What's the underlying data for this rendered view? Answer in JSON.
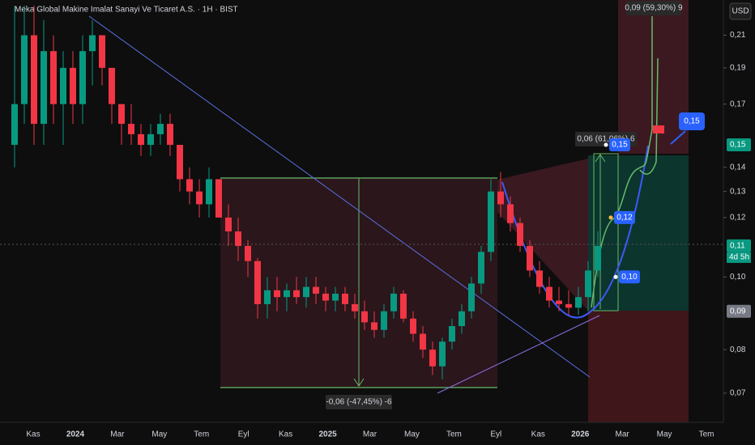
{
  "header": {
    "title": "Meka Global Makine Imalat Sanayi Ve Ticaret A.S. · 1H · BIST",
    "currency": "USD"
  },
  "chart_data": {
    "type": "candlestick",
    "categories": [
      "Kas",
      "2024",
      "Mar",
      "May",
      "Tem",
      "Eyl",
      "Kas",
      "2025",
      "Mar",
      "May",
      "Tem",
      "Eyl",
      "Kas",
      "2026",
      "Mar",
      "May",
      "Tem"
    ],
    "open": [
      0.15,
      0.17,
      0.21,
      0.16,
      0.2,
      0.17,
      0.19,
      0.17,
      0.2,
      0.21,
      0.19,
      0.17,
      0.16,
      0.155,
      0.15,
      0.155,
      0.16,
      0.15,
      0.135,
      0.13,
      0.125,
      0.135,
      0.12,
      0.115,
      0.11,
      0.105,
      0.092,
      0.096,
      0.094,
      0.096,
      0.094,
      0.097,
      0.095,
      0.093,
      0.095,
      0.092,
      0.09,
      0.087,
      0.085,
      0.09,
      0.095,
      0.088,
      0.084,
      0.08,
      0.076,
      0.082,
      0.086,
      0.09,
      0.098,
      0.108,
      0.13,
      0.125,
      0.118,
      0.11,
      0.102,
      0.097,
      0.093,
      0.092,
      0.091,
      0.094,
      0.102
    ],
    "high": [
      0.23,
      0.23,
      0.23,
      0.22,
      0.21,
      0.2,
      0.2,
      0.21,
      0.22,
      0.21,
      0.19,
      0.17,
      0.17,
      0.16,
      0.16,
      0.165,
      0.165,
      0.15,
      0.14,
      0.135,
      0.14,
      0.135,
      0.125,
      0.12,
      0.112,
      0.106,
      0.1,
      0.1,
      0.098,
      0.1,
      0.1,
      0.1,
      0.097,
      0.097,
      0.097,
      0.095,
      0.093,
      0.09,
      0.092,
      0.097,
      0.096,
      0.09,
      0.086,
      0.082,
      0.083,
      0.088,
      0.092,
      0.1,
      0.11,
      0.135,
      0.138,
      0.128,
      0.12,
      0.112,
      0.105,
      0.1,
      0.097,
      0.096,
      0.097,
      0.105,
      0.115
    ],
    "low": [
      0.14,
      0.16,
      0.15,
      0.15,
      0.16,
      0.15,
      0.16,
      0.16,
      0.18,
      0.18,
      0.16,
      0.15,
      0.15,
      0.145,
      0.145,
      0.15,
      0.145,
      0.13,
      0.125,
      0.12,
      0.12,
      0.12,
      0.11,
      0.105,
      0.1,
      0.088,
      0.088,
      0.09,
      0.09,
      0.092,
      0.091,
      0.092,
      0.09,
      0.09,
      0.09,
      0.088,
      0.085,
      0.083,
      0.083,
      0.088,
      0.087,
      0.082,
      0.078,
      0.074,
      0.073,
      0.08,
      0.084,
      0.088,
      0.095,
      0.105,
      0.12,
      0.115,
      0.108,
      0.1,
      0.095,
      0.091,
      0.09,
      0.089,
      0.089,
      0.09,
      0.1
    ],
    "close": [
      0.17,
      0.21,
      0.16,
      0.2,
      0.17,
      0.19,
      0.17,
      0.2,
      0.21,
      0.19,
      0.17,
      0.16,
      0.155,
      0.15,
      0.155,
      0.16,
      0.15,
      0.135,
      0.13,
      0.125,
      0.135,
      0.12,
      0.115,
      0.11,
      0.105,
      0.092,
      0.096,
      0.094,
      0.096,
      0.094,
      0.097,
      0.095,
      0.093,
      0.095,
      0.092,
      0.09,
      0.087,
      0.085,
      0.09,
      0.095,
      0.088,
      0.084,
      0.08,
      0.076,
      0.082,
      0.086,
      0.09,
      0.098,
      0.108,
      0.13,
      0.125,
      0.118,
      0.11,
      0.102,
      0.097,
      0.093,
      0.092,
      0.091,
      0.094,
      0.102,
      0.11
    ],
    "ylim": [
      0.064,
      0.234
    ],
    "log_scale": true,
    "yticks": [
      {
        "value": 0.07,
        "label": "0,07"
      },
      {
        "value": 0.08,
        "label": "0,08"
      },
      {
        "value": 0.1,
        "label": "0,10"
      },
      {
        "value": 0.12,
        "label": "0,12"
      },
      {
        "value": 0.13,
        "label": "0,13"
      },
      {
        "value": 0.14,
        "label": "0,14"
      },
      {
        "value": 0.17,
        "label": "0,17"
      },
      {
        "value": 0.19,
        "label": "0,19"
      },
      {
        "value": 0.21,
        "label": "0,21"
      }
    ],
    "up_color": "#089981",
    "down_color": "#f23645"
  },
  "price_labels": [
    {
      "value": 0.15,
      "label": "0,15",
      "color": "#089981"
    },
    {
      "value": 0.11,
      "label": "0,11",
      "color": "#089981",
      "note": "4d 5h"
    },
    {
      "value": 0.09,
      "label": "0,09",
      "color": "#787b86"
    }
  ],
  "markers": [
    {
      "value": 0.15,
      "label": "0,15"
    },
    {
      "value": 0.12,
      "label": "0,12"
    },
    {
      "value": 0.1,
      "label": "0,10"
    }
  ],
  "callout": "0,15",
  "measures": [
    "-0,06 (-47,45%) -6",
    "0,06 (61,06%) 6",
    "0,09 (59,30%) 9"
  ]
}
